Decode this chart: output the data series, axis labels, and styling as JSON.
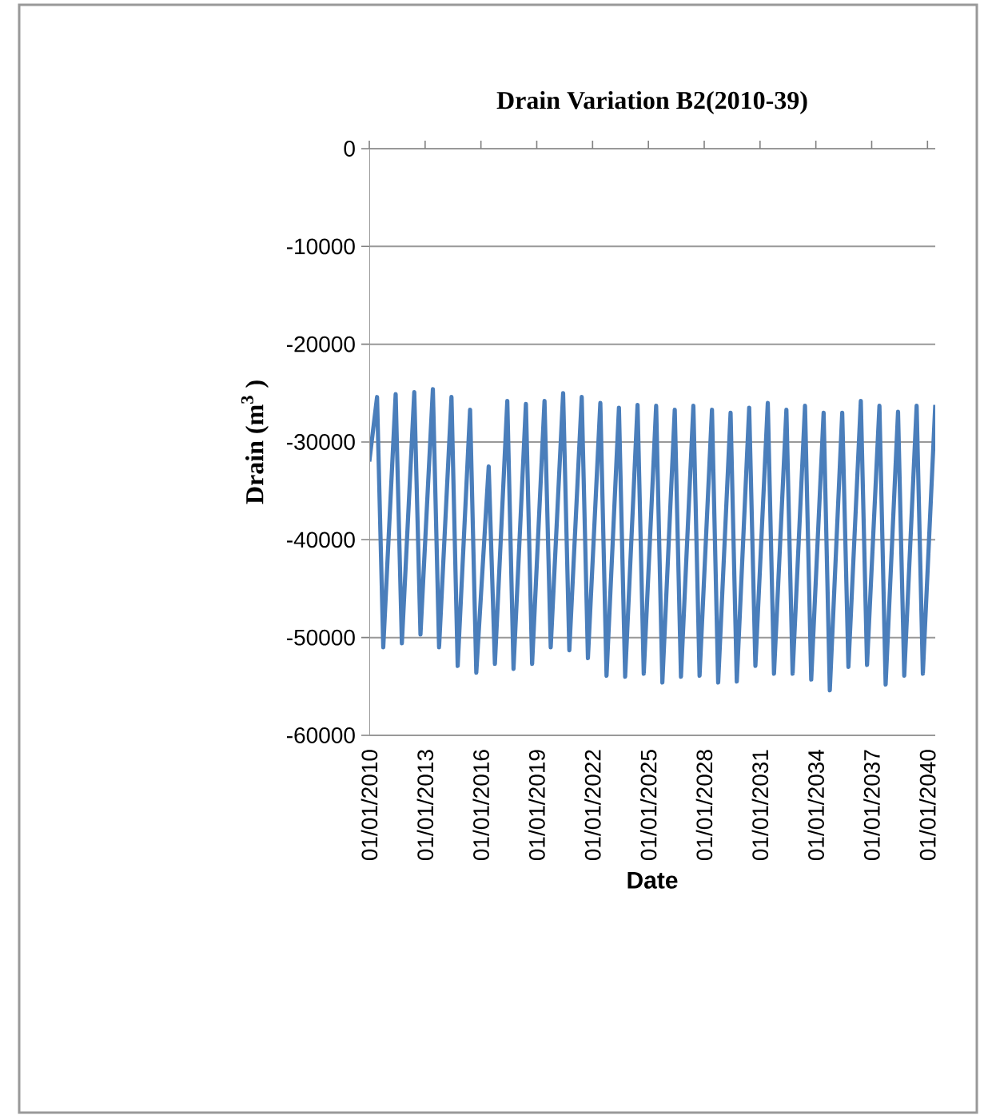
{
  "chart_data": {
    "type": "line",
    "title": "Drain Variation B2(2010-39)",
    "xlabel": "Date",
    "ylabel": "Drain (m$^{3}$ )",
    "x": [
      "2010-01",
      "2010-06",
      "2010-10",
      "2011-06",
      "2011-10",
      "2012-06",
      "2012-10",
      "2013-06",
      "2013-10",
      "2014-06",
      "2014-10",
      "2015-06",
      "2015-10",
      "2016-06",
      "2016-10",
      "2017-06",
      "2017-10",
      "2018-06",
      "2018-10",
      "2019-06",
      "2019-10",
      "2020-06",
      "2020-10",
      "2021-06",
      "2021-10",
      "2022-06",
      "2022-10",
      "2023-06",
      "2023-10",
      "2024-06",
      "2024-10",
      "2025-06",
      "2025-10",
      "2026-06",
      "2026-10",
      "2027-06",
      "2027-10",
      "2028-06",
      "2028-10",
      "2029-06",
      "2029-10",
      "2030-06",
      "2030-10",
      "2031-06",
      "2031-10",
      "2032-06",
      "2032-10",
      "2033-06",
      "2033-10",
      "2034-06",
      "2034-10",
      "2035-06",
      "2035-10",
      "2036-06",
      "2036-10",
      "2037-06",
      "2037-10",
      "2038-06",
      "2038-10",
      "2039-06",
      "2039-10",
      "2040-06"
    ],
    "series": [
      {
        "color": "#4a7ebb",
        "values": [
          -32000,
          -25400,
          -51000,
          -25100,
          -50600,
          -24900,
          -49700,
          -24600,
          -51000,
          -25400,
          -52900,
          -26700,
          -53600,
          -32500,
          -52700,
          -25800,
          -53200,
          -26100,
          -52700,
          -25800,
          -51000,
          -25000,
          -51300,
          -25400,
          -52100,
          -26000,
          -53900,
          -26500,
          -54000,
          -26200,
          -53700,
          -26300,
          -54600,
          -26700,
          -54000,
          -26300,
          -53900,
          -26700,
          -54600,
          -27000,
          -54500,
          -26500,
          -52900,
          -26000,
          -53700,
          -26700,
          -53700,
          -26300,
          -54300,
          -27000,
          -55400,
          -27000,
          -53000,
          -25800,
          -52800,
          -26300,
          -54800,
          -26900,
          -53900,
          -26300,
          -53700,
          -26200
        ]
      }
    ],
    "xlim": [
      "2010-01-01",
      "2040-06-01"
    ],
    "xticks": [
      {
        "value": "2010-01-01",
        "label": "01/01/2010"
      },
      {
        "value": "2013-01-01",
        "label": "01/01/2013"
      },
      {
        "value": "2016-01-01",
        "label": "01/01/2016"
      },
      {
        "value": "2019-01-01",
        "label": "01/01/2019"
      },
      {
        "value": "2022-01-01",
        "label": "01/01/2022"
      },
      {
        "value": "2025-01-01",
        "label": "01/01/2025"
      },
      {
        "value": "2028-01-01",
        "label": "01/01/2028"
      },
      {
        "value": "2031-01-01",
        "label": "01/01/2031"
      },
      {
        "value": "2034-01-01",
        "label": "01/01/2034"
      },
      {
        "value": "2037-01-01",
        "label": "01/01/2037"
      },
      {
        "value": "2040-01-01",
        "label": "01/01/2040"
      }
    ],
    "ylim": [
      -60000,
      0
    ],
    "yticks": [
      -60000,
      -50000,
      -40000,
      -30000,
      -20000,
      -10000,
      0
    ],
    "grid": "y",
    "marker": "none",
    "line_style": "solid"
  }
}
